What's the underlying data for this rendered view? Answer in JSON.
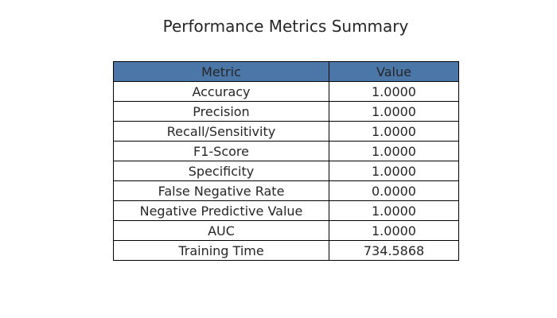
{
  "chart_data": {
    "type": "table",
    "title": "Performance Metrics Summary",
    "columns": [
      "Metric",
      "Value"
    ],
    "rows": [
      [
        "Accuracy",
        "1.0000"
      ],
      [
        "Precision",
        "1.0000"
      ],
      [
        "Recall/Sensitivity",
        "1.0000"
      ],
      [
        "F1-Score",
        "1.0000"
      ],
      [
        "Specificity",
        "1.0000"
      ],
      [
        "False Negative Rate",
        "0.0000"
      ],
      [
        "Negative Predictive Value",
        "1.0000"
      ],
      [
        "AUC",
        "1.0000"
      ],
      [
        "Training Time",
        "734.5868"
      ]
    ],
    "header_color": "#4a77a8",
    "border_color": "#000000",
    "cell_color": "#ffffff"
  }
}
